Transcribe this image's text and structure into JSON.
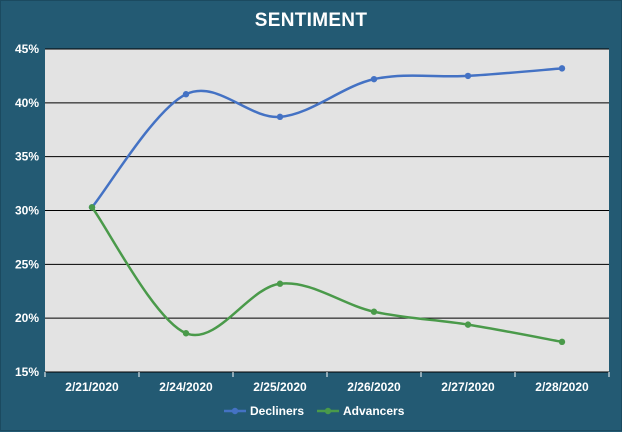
{
  "chart_data": {
    "type": "line",
    "title": "SENTIMENT",
    "x": [
      "2/21/2020",
      "2/24/2020",
      "2/25/2020",
      "2/26/2020",
      "2/27/2020",
      "2/28/2020"
    ],
    "yticks": [
      "15%",
      "20%",
      "25%",
      "30%",
      "35%",
      "40%",
      "45%"
    ],
    "ylim": [
      15,
      45
    ],
    "grid": true,
    "legend": "bottom",
    "series": [
      {
        "name": "Decliners",
        "color": "#4472c4",
        "values": [
          30.3,
          40.8,
          38.7,
          42.2,
          42.5,
          43.2
        ]
      },
      {
        "name": "Advancers",
        "color": "#4a9a4a",
        "values": [
          30.3,
          18.6,
          23.2,
          20.6,
          19.4,
          17.8
        ]
      }
    ]
  }
}
